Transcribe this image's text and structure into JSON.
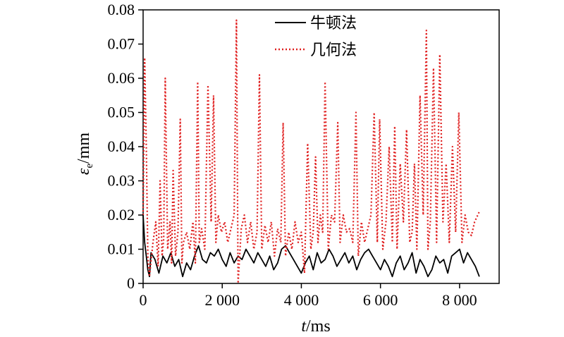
{
  "chart_data": {
    "type": "line",
    "xlabel_italic": "t",
    "xlabel_unit": "/ms",
    "ylabel_symbol": "ε",
    "ylabel_sub": "e",
    "ylabel_unit": "/mm",
    "xlim": [
      0,
      9000
    ],
    "ylim": [
      0,
      0.08
    ],
    "x_ticks": [
      0,
      2000,
      4000,
      6000,
      8000
    ],
    "x_tick_labels": [
      "0",
      "2 000",
      "4 000",
      "6 000",
      "8 000"
    ],
    "y_ticks": [
      0,
      0.01,
      0.02,
      0.03,
      0.04,
      0.05,
      0.06,
      0.07,
      0.08
    ],
    "y_tick_labels": [
      "0",
      "0.01",
      "0.02",
      "0.03",
      "0.04",
      "0.05",
      "0.06",
      "0.07",
      "0.08"
    ],
    "grid": false,
    "legend_position": "top-center",
    "series": [
      {
        "name": "牛顿法",
        "color": "#000000",
        "style": "solid",
        "x": [
          0,
          40,
          80,
          120,
          160,
          200,
          300,
          400,
          500,
          600,
          700,
          800,
          900,
          1000,
          1100,
          1200,
          1300,
          1400,
          1500,
          1600,
          1700,
          1800,
          1900,
          2000,
          2100,
          2200,
          2300,
          2400,
          2500,
          2600,
          2700,
          2800,
          2900,
          3000,
          3100,
          3200,
          3300,
          3400,
          3500,
          3600,
          3700,
          3800,
          3900,
          4000,
          4100,
          4200,
          4300,
          4400,
          4500,
          4600,
          4700,
          4800,
          4900,
          5000,
          5100,
          5200,
          5300,
          5400,
          5500,
          5600,
          5700,
          5800,
          5900,
          6000,
          6100,
          6200,
          6300,
          6400,
          6500,
          6600,
          6700,
          6800,
          6900,
          7000,
          7100,
          7200,
          7300,
          7400,
          7500,
          7600,
          7700,
          7800,
          7900,
          8000,
          8100,
          8200,
          8300,
          8400,
          8500
        ],
        "values": [
          0.02,
          0.012,
          0.008,
          0.004,
          0.002,
          0.009,
          0.007,
          0.003,
          0.008,
          0.006,
          0.009,
          0.005,
          0.007,
          0.002,
          0.006,
          0.004,
          0.008,
          0.011,
          0.007,
          0.006,
          0.009,
          0.008,
          0.01,
          0.007,
          0.005,
          0.009,
          0.006,
          0.008,
          0.007,
          0.01,
          0.008,
          0.006,
          0.009,
          0.007,
          0.005,
          0.008,
          0.004,
          0.006,
          0.01,
          0.011,
          0.009,
          0.007,
          0.005,
          0.003,
          0.006,
          0.008,
          0.004,
          0.009,
          0.006,
          0.007,
          0.01,
          0.008,
          0.005,
          0.007,
          0.009,
          0.006,
          0.008,
          0.004,
          0.007,
          0.009,
          0.01,
          0.008,
          0.006,
          0.004,
          0.007,
          0.005,
          0.002,
          0.006,
          0.008,
          0.004,
          0.006,
          0.009,
          0.003,
          0.007,
          0.005,
          0.002,
          0.004,
          0.008,
          0.006,
          0.007,
          0.003,
          0.008,
          0.009,
          0.01,
          0.006,
          0.009,
          0.007,
          0.005,
          0.002
        ]
      },
      {
        "name": "几何法",
        "color": "#e02020",
        "style": "dotted",
        "x": [
          0,
          40,
          80,
          120,
          160,
          250,
          320,
          380,
          430,
          480,
          520,
          560,
          620,
          680,
          720,
          760,
          820,
          880,
          940,
          980,
          1020,
          1100,
          1180,
          1260,
          1320,
          1380,
          1420,
          1480,
          1560,
          1640,
          1720,
          1780,
          1840,
          1900,
          1980,
          2060,
          2140,
          2220,
          2300,
          2360,
          2400,
          2480,
          2560,
          2640,
          2720,
          2800,
          2880,
          2940,
          3000,
          3080,
          3160,
          3240,
          3320,
          3400,
          3480,
          3540,
          3600,
          3680,
          3760,
          3840,
          3920,
          4000,
          4080,
          4160,
          4240,
          4300,
          4360,
          4420,
          4480,
          4540,
          4600,
          4680,
          4760,
          4840,
          4920,
          4980,
          5060,
          5140,
          5220,
          5300,
          5380,
          5440,
          5520,
          5600,
          5680,
          5760,
          5840,
          5920,
          5980,
          6060,
          6140,
          6220,
          6300,
          6360,
          6420,
          6500,
          6580,
          6660,
          6740,
          6800,
          6860,
          6920,
          7000,
          7080,
          7160,
          7200,
          7260,
          7340,
          7420,
          7500,
          7580,
          7660,
          7740,
          7820,
          7900,
          7980,
          8060,
          8140,
          8220,
          8300,
          8380,
          8460,
          8500
        ],
        "values": [
          0.02,
          0.066,
          0.04,
          0.008,
          0.002,
          0.012,
          0.018,
          0.005,
          0.03,
          0.008,
          0.013,
          0.06,
          0.01,
          0.018,
          0.006,
          0.033,
          0.008,
          0.015,
          0.048,
          0.006,
          0.012,
          0.015,
          0.01,
          0.018,
          0.006,
          0.059,
          0.012,
          0.016,
          0.01,
          0.058,
          0.018,
          0.055,
          0.012,
          0.02,
          0.015,
          0.018,
          0.012,
          0.016,
          0.02,
          0.077,
          0.0,
          0.016,
          0.02,
          0.012,
          0.018,
          0.01,
          0.015,
          0.061,
          0.01,
          0.017,
          0.012,
          0.018,
          0.008,
          0.016,
          0.012,
          0.047,
          0.008,
          0.015,
          0.01,
          0.018,
          0.012,
          0.015,
          0.003,
          0.041,
          0.01,
          0.015,
          0.037,
          0.012,
          0.02,
          0.015,
          0.059,
          0.01,
          0.02,
          0.018,
          0.047,
          0.012,
          0.02,
          0.015,
          0.016,
          0.012,
          0.05,
          0.008,
          0.018,
          0.012,
          0.016,
          0.02,
          0.05,
          0.012,
          0.048,
          0.01,
          0.018,
          0.04,
          0.012,
          0.046,
          0.01,
          0.035,
          0.018,
          0.045,
          0.012,
          0.015,
          0.035,
          0.01,
          0.055,
          0.02,
          0.074,
          0.01,
          0.018,
          0.063,
          0.012,
          0.067,
          0.018,
          0.035,
          0.012,
          0.04,
          0.015,
          0.05,
          0.012,
          0.02,
          0.015,
          0.014,
          0.018,
          0.02,
          0.021
        ]
      }
    ]
  }
}
